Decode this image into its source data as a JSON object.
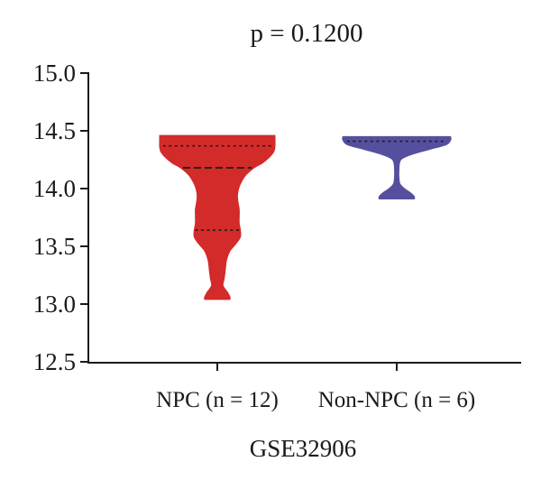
{
  "chart_data": {
    "type": "violin",
    "title": "p = 0.1200",
    "xlabel": "GSE32906",
    "ylabel": "",
    "ylim": [
      12.5,
      15.0
    ],
    "yticks": [
      "15.0",
      "14.5",
      "14.0",
      "13.5",
      "13.0",
      "12.5"
    ],
    "grid": false,
    "legend": "none",
    "categories": [
      "NPC (n = 12)",
      "Non-NPC (n = 6)"
    ],
    "series": [
      {
        "category": "NPC (n = 12)",
        "color": "#d32a2a",
        "min": 13.04,
        "max": 14.46,
        "median": 14.18,
        "q1": 13.64,
        "q3": 14.37,
        "profile": [
          [
            14.46,
            1.0
          ],
          [
            14.42,
            1.0
          ],
          [
            14.37,
            1.0
          ],
          [
            14.32,
            0.98
          ],
          [
            14.27,
            0.9
          ],
          [
            14.22,
            0.78
          ],
          [
            14.18,
            0.64
          ],
          [
            14.12,
            0.5
          ],
          [
            14.06,
            0.42
          ],
          [
            14.0,
            0.37
          ],
          [
            13.94,
            0.35
          ],
          [
            13.88,
            0.36
          ],
          [
            13.82,
            0.38
          ],
          [
            13.76,
            0.38
          ],
          [
            13.7,
            0.38
          ],
          [
            13.64,
            0.4
          ],
          [
            13.58,
            0.4
          ],
          [
            13.52,
            0.32
          ],
          [
            13.46,
            0.22
          ],
          [
            13.38,
            0.16
          ],
          [
            13.3,
            0.14
          ],
          [
            13.22,
            0.12
          ],
          [
            13.16,
            0.1
          ],
          [
            13.1,
            0.18
          ],
          [
            13.06,
            0.22
          ],
          [
            13.04,
            0.22
          ]
        ]
      },
      {
        "category": "Non-NPC (n = 6)",
        "color": "#55509d",
        "min": 13.91,
        "max": 14.45,
        "median": 14.41,
        "q1": 14.41,
        "q3": 14.41,
        "profile": [
          [
            14.45,
            0.98
          ],
          [
            14.42,
            0.98
          ],
          [
            14.38,
            0.9
          ],
          [
            14.34,
            0.6
          ],
          [
            14.3,
            0.3
          ],
          [
            14.26,
            0.1
          ],
          [
            14.22,
            0.05
          ],
          [
            14.16,
            0.04
          ],
          [
            14.1,
            0.04
          ],
          [
            14.04,
            0.06
          ],
          [
            14.0,
            0.14
          ],
          [
            13.96,
            0.26
          ],
          [
            13.93,
            0.32
          ],
          [
            13.91,
            0.32
          ]
        ]
      }
    ]
  }
}
